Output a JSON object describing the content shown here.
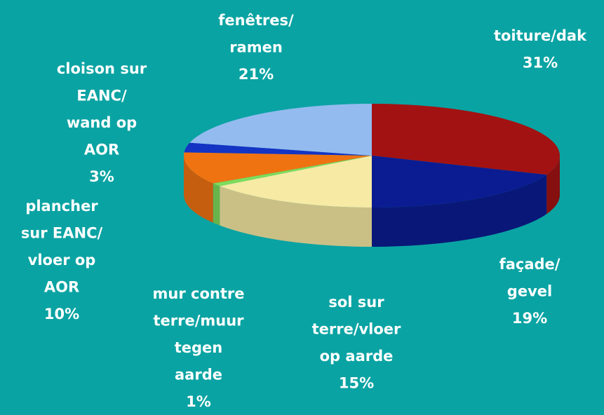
{
  "chart_data": {
    "type": "pie",
    "categories": [
      "toiture/dak",
      "façade/\ngevel",
      "sol sur\nterre/vloer\nop aarde",
      "mur contre\nterre/muur\ntegen\naarde",
      "plancher\nsur EANC/\nvloer op\nAOR",
      "cloison sur\nEANC/\nwand op\nAOR",
      "fenêtres/\nramen"
    ],
    "values": [
      31,
      19,
      15,
      1,
      10,
      3,
      21
    ],
    "value_labels": [
      "31%",
      "19%",
      "15%",
      "1%",
      "10%",
      "3%",
      "21%"
    ],
    "colors": [
      "#a31212",
      "#0b1c92",
      "#f6eaa4",
      "#7ddc5c",
      "#f07312",
      "#1434c4",
      "#93bbef"
    ]
  }
}
